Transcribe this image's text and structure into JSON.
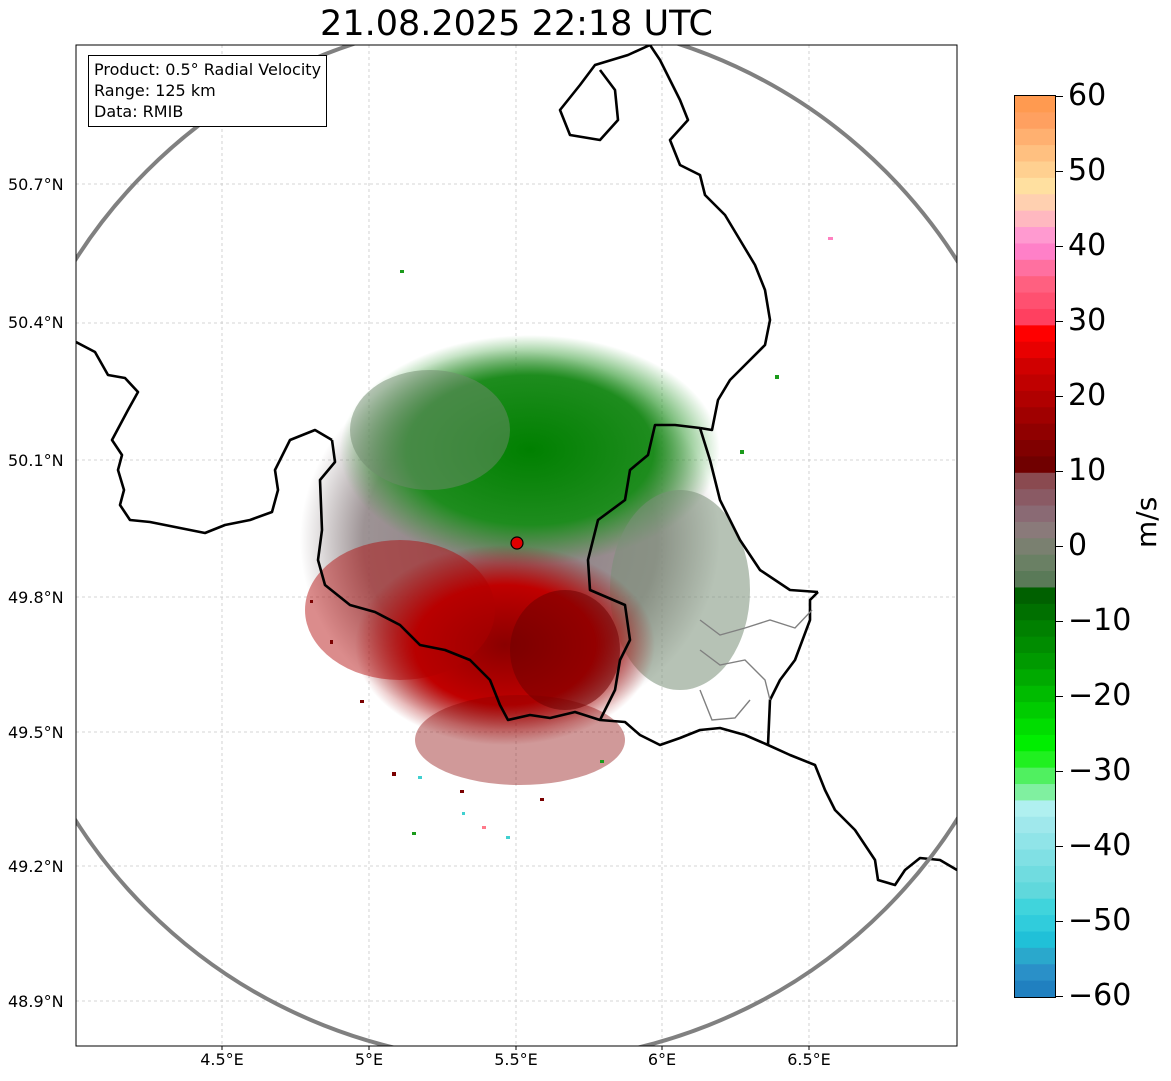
{
  "title": "21.08.2025 22:18 UTC",
  "info": {
    "product": "Product: 0.5° Radial Velocity",
    "range": "Range: 125 km",
    "data": "Data: RMIB"
  },
  "axes": {
    "lat_labels": [
      "50.7°N",
      "50.4°N",
      "50.1°N",
      "49.8°N",
      "49.5°N",
      "49.2°N",
      "48.9°N"
    ],
    "lon_labels": [
      "4.5°E",
      "5°E",
      "5.5°E",
      "6°E",
      "6.5°E"
    ]
  },
  "colorbar": {
    "unit": "m/s",
    "tick_labels": [
      "60",
      "50",
      "40",
      "30",
      "20",
      "10",
      "0",
      "−10",
      "−20",
      "−30",
      "−40",
      "−50",
      "−60"
    ],
    "range": [
      -60,
      60
    ]
  },
  "colors": {
    "range_ring": "#808080",
    "border": "#000000",
    "subborder": "#808080",
    "radar_site": "#e00000"
  },
  "radar_site": {
    "lon": 5.5,
    "lat": 49.91
  }
}
